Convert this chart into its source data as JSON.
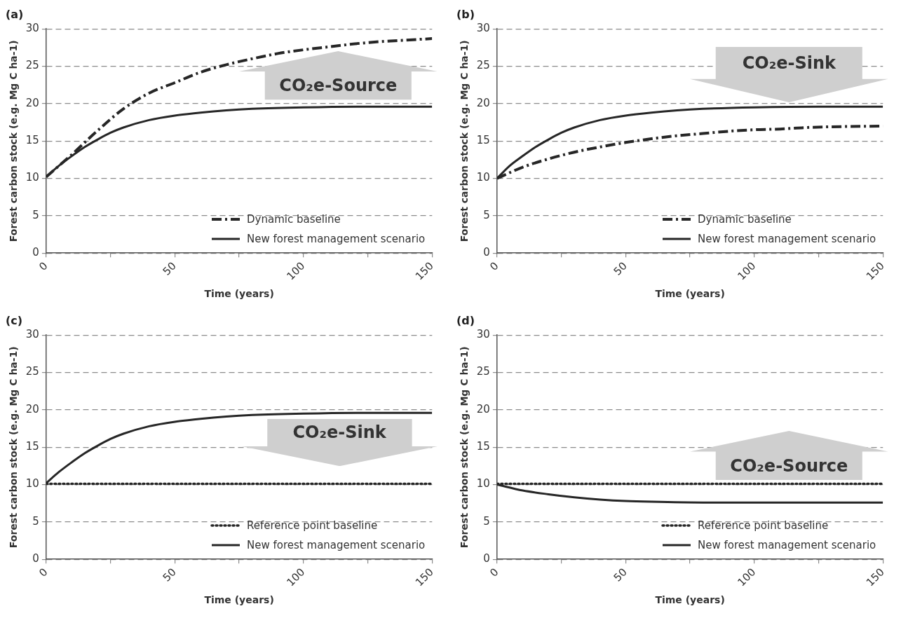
{
  "chart_data": [
    {
      "type": "line",
      "title": "(a)",
      "xlabel": "Time (years)",
      "ylabel": "Forest carbon stock (e.g. Mg C ha-1)",
      "xlim": [
        0,
        150
      ],
      "ylim": [
        0,
        30
      ],
      "xticks": [
        0,
        {
          "value": 25,
          "label": null
        },
        50,
        {
          "value": 75,
          "label": null
        },
        100,
        {
          "value": 125,
          "label": null
        },
        150
      ],
      "yticks": [
        0,
        5,
        10,
        15,
        20,
        25,
        30
      ],
      "grid": "y",
      "legend": "bottom right",
      "annotations": [
        "CO₂e-Source"
      ],
      "series": [
        {
          "name": "Dynamic baseline",
          "color": "#262626",
          "line_style": "dashed",
          "x": [
            0,
            10,
            20,
            30,
            40,
            50,
            60,
            70,
            80,
            90,
            100,
            110,
            120,
            130,
            140,
            150
          ],
          "values": [
            10.2,
            13.2,
            16.4,
            19.3,
            21.4,
            22.8,
            24.2,
            25.2,
            26.0,
            26.7,
            27.2,
            27.6,
            28.0,
            28.3,
            28.5,
            28.7
          ]
        },
        {
          "name": "New forest management scenario",
          "color": "#262626",
          "line_style": "solid",
          "x": [
            0,
            5,
            10,
            15,
            20,
            25,
            30,
            40,
            50,
            60,
            70,
            80,
            100,
            125,
            150
          ],
          "values": [
            10.2,
            11.7,
            13.0,
            14.2,
            15.2,
            16.1,
            16.8,
            17.8,
            18.4,
            18.8,
            19.1,
            19.3,
            19.5,
            19.6,
            19.6
          ]
        }
      ]
    },
    {
      "type": "line",
      "title": "(b)",
      "xlabel": "Time (years)",
      "ylabel": "Forest carbon stock (e.g. Mg C ha-1)",
      "xlim": [
        0,
        150
      ],
      "ylim": [
        0,
        30
      ],
      "xticks": [
        0,
        {
          "value": 25,
          "label": null
        },
        50,
        {
          "value": 75,
          "label": null
        },
        100,
        {
          "value": 125,
          "label": null
        },
        150
      ],
      "yticks": [
        0,
        5,
        10,
        15,
        20,
        25,
        30
      ],
      "grid": "y",
      "legend": "bottom right",
      "annotations": [
        "CO₂e-Sink"
      ],
      "series": [
        {
          "name": "Dynamic baseline",
          "color": "#262626",
          "line_style": "dashed",
          "x": [
            0,
            10,
            20,
            30,
            40,
            50,
            60,
            70,
            80,
            90,
            100,
            110,
            120,
            130,
            150
          ],
          "values": [
            10.0,
            11.5,
            12.6,
            13.5,
            14.2,
            14.8,
            15.3,
            15.7,
            16.0,
            16.3,
            16.5,
            16.6,
            16.8,
            16.9,
            17.0
          ]
        },
        {
          "name": "New forest management scenario",
          "color": "#262626",
          "line_style": "solid",
          "x": [
            0,
            5,
            10,
            15,
            20,
            25,
            30,
            40,
            50,
            60,
            70,
            80,
            100,
            125,
            150
          ],
          "values": [
            10.0,
            11.7,
            13.0,
            14.2,
            15.2,
            16.1,
            16.8,
            17.8,
            18.4,
            18.8,
            19.1,
            19.3,
            19.5,
            19.6,
            19.6
          ]
        }
      ]
    },
    {
      "type": "line",
      "title": "(c)",
      "xlabel": "Time (years)",
      "ylabel": "Forest carbon stock (e.g. Mg C ha-1)",
      "xlim": [
        0,
        150
      ],
      "ylim": [
        0,
        30
      ],
      "xticks": [
        0,
        {
          "value": 25,
          "label": null
        },
        50,
        {
          "value": 75,
          "label": null
        },
        100,
        {
          "value": 125,
          "label": null
        },
        150
      ],
      "yticks": [
        0,
        5,
        10,
        15,
        20,
        25,
        30
      ],
      "grid": "y",
      "legend": "bottom right",
      "annotations": [
        "CO₂e-Sink"
      ],
      "series": [
        {
          "name": "Reference point baseline",
          "color": "#262626",
          "line_style": "dotted",
          "x": [
            0,
            150
          ],
          "values": [
            10.1,
            10.1
          ]
        },
        {
          "name": "New forest management scenario",
          "color": "#262626",
          "line_style": "solid",
          "x": [
            0,
            5,
            10,
            15,
            20,
            25,
            30,
            40,
            50,
            60,
            70,
            80,
            100,
            125,
            150
          ],
          "values": [
            10.2,
            11.7,
            13.0,
            14.2,
            15.2,
            16.1,
            16.8,
            17.8,
            18.4,
            18.8,
            19.1,
            19.3,
            19.5,
            19.6,
            19.6
          ]
        }
      ]
    },
    {
      "type": "line",
      "title": "(d)",
      "xlabel": "Time (years)",
      "ylabel": "Forest carbon stock (e.g. Mg C ha-1)",
      "xlim": [
        0,
        150
      ],
      "ylim": [
        0,
        30
      ],
      "xticks": [
        0,
        {
          "value": 25,
          "label": null
        },
        50,
        {
          "value": 75,
          "label": null
        },
        100,
        {
          "value": 125,
          "label": null
        },
        150
      ],
      "yticks": [
        0,
        5,
        10,
        15,
        20,
        25,
        30
      ],
      "grid": "y",
      "legend": "bottom right",
      "annotations": [
        "CO₂e-Source"
      ],
      "series": [
        {
          "name": "Reference point baseline",
          "color": "#262626",
          "line_style": "dotted",
          "x": [
            0,
            150
          ],
          "values": [
            10.1,
            10.1
          ]
        },
        {
          "name": "New forest management scenario",
          "color": "#262626",
          "line_style": "solid",
          "x": [
            0,
            10,
            20,
            30,
            40,
            50,
            60,
            80,
            100,
            150
          ],
          "values": [
            10.0,
            9.2,
            8.7,
            8.3,
            8.0,
            7.8,
            7.7,
            7.6,
            7.6,
            7.6
          ]
        }
      ]
    }
  ]
}
